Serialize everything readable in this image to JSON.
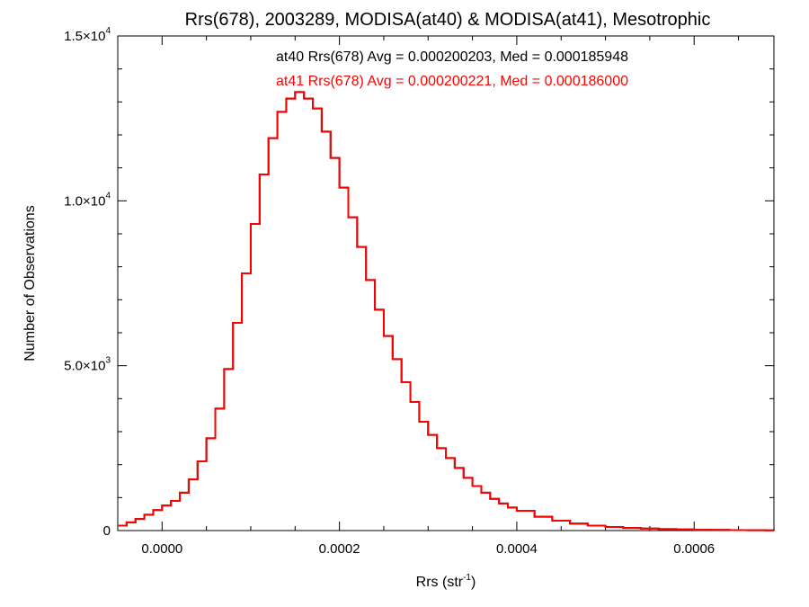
{
  "chart_data": {
    "type": "line",
    "style": "step-histogram",
    "title": "Rrs(678), 2003289, MODISA(at40) & MODISA(at41), Mesotrophic",
    "xlabel": "Rrs (str",
    "xlabel_superscript": "-1",
    "xlabel_suffix": ")",
    "ylabel": "Number of Observations",
    "xlim": [
      -5e-05,
      0.00069
    ],
    "ylim": [
      0,
      15000
    ],
    "grid": false,
    "x_ticks": [
      {
        "value": 0.0,
        "label": "0.0000"
      },
      {
        "value": 0.0002,
        "label": "0.0002"
      },
      {
        "value": 0.0004,
        "label": "0.0004"
      },
      {
        "value": 0.0006,
        "label": "0.0006"
      }
    ],
    "y_ticks": [
      {
        "value": 0,
        "mant": "0",
        "exp": ""
      },
      {
        "value": 5000,
        "mant": "5.0×10",
        "exp": "3"
      },
      {
        "value": 10000,
        "mant": "1.0×10",
        "exp": "4"
      },
      {
        "value": 15000,
        "mant": "1.5×10",
        "exp": "4"
      }
    ],
    "annotations": [
      {
        "text": "at40 Rrs(678) Avg = 0.000200203, Med = 0.000185948",
        "color": "#000000"
      },
      {
        "text": "at41 Rrs(678) Avg = 0.000200221, Med = 0.000186000",
        "color": "#ff0000"
      }
    ],
    "x": [
      -5e-05,
      -4e-05,
      -3e-05,
      -2e-05,
      -1e-05,
      0.0,
      1e-05,
      2e-05,
      3e-05,
      4e-05,
      5e-05,
      6e-05,
      7e-05,
      8e-05,
      9e-05,
      0.0001,
      0.00011,
      0.00012,
      0.00013,
      0.00014,
      0.00015,
      0.00016,
      0.00017,
      0.00018,
      0.00019,
      0.0002,
      0.00021,
      0.00022,
      0.00023,
      0.00024,
      0.00025,
      0.00026,
      0.00027,
      0.00028,
      0.00029,
      0.0003,
      0.00031,
      0.00032,
      0.00033,
      0.00034,
      0.00035,
      0.00036,
      0.00037,
      0.00038,
      0.00039,
      0.0004,
      0.00042,
      0.00044,
      0.00046,
      0.00048,
      0.0005,
      0.00052,
      0.00054,
      0.00056,
      0.00058,
      0.0006,
      0.00062,
      0.00064,
      0.00066,
      0.00068,
      0.00069
    ],
    "series": [
      {
        "name": "at40",
        "color": "#000000",
        "values": [
          150,
          250,
          350,
          480,
          620,
          760,
          900,
          1150,
          1550,
          2100,
          2800,
          3700,
          4900,
          6300,
          7800,
          9300,
          10800,
          11900,
          12700,
          13100,
          13300,
          13100,
          12800,
          12100,
          11300,
          10400,
          9500,
          8600,
          7600,
          6700,
          5900,
          5200,
          4500,
          3900,
          3300,
          2900,
          2500,
          2200,
          1900,
          1600,
          1350,
          1150,
          960,
          820,
          700,
          600,
          420,
          300,
          210,
          150,
          110,
          80,
          60,
          45,
          35,
          25,
          20,
          15,
          10,
          6,
          5
        ]
      },
      {
        "name": "at41",
        "color": "#ff0000",
        "values": [
          150,
          250,
          350,
          480,
          620,
          760,
          900,
          1150,
          1550,
          2100,
          2800,
          3700,
          4900,
          6300,
          7800,
          9300,
          10800,
          11900,
          12700,
          13100,
          13300,
          13100,
          12800,
          12100,
          11300,
          10400,
          9500,
          8600,
          7600,
          6700,
          5900,
          5200,
          4500,
          3900,
          3300,
          2900,
          2500,
          2200,
          1900,
          1600,
          1350,
          1150,
          960,
          820,
          700,
          600,
          420,
          300,
          210,
          150,
          110,
          80,
          60,
          45,
          35,
          25,
          20,
          15,
          10,
          6,
          5
        ]
      }
    ]
  }
}
